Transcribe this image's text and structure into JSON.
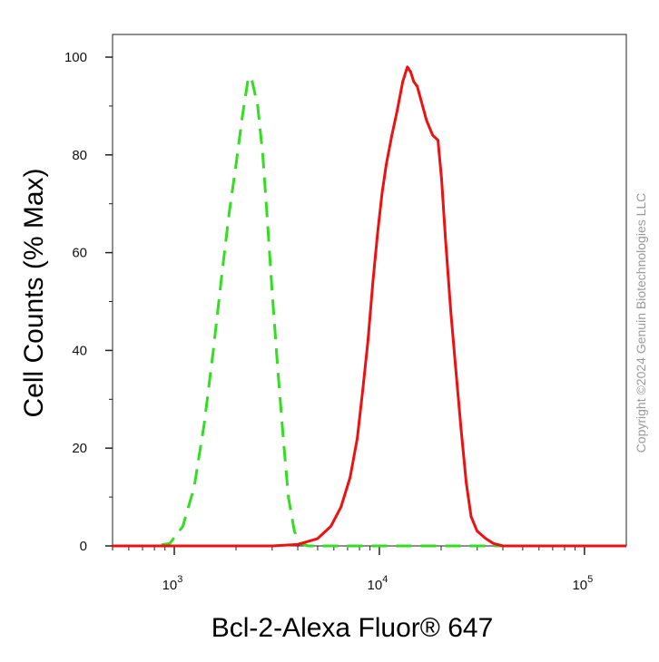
{
  "chart_data": {
    "type": "line",
    "title": "",
    "xlabel": "Bcl-2-Alexa Fluor® 647",
    "ylabel": "Cell Counts (% Max)",
    "x_scale": "log",
    "xlim": [
      500,
      160000
    ],
    "ylim": [
      0,
      105
    ],
    "grid": false,
    "x_ticks": [
      {
        "value": 1000,
        "base": "10",
        "exp": "3"
      },
      {
        "value": 10000,
        "base": "10",
        "exp": "4"
      },
      {
        "value": 100000,
        "base": "10",
        "exp": "5"
      }
    ],
    "y_ticks": [
      0,
      20,
      40,
      60,
      80,
      100
    ],
    "series": [
      {
        "color": "#33dd22",
        "style": "dashed",
        "x": [
          500,
          800,
          950,
          1100,
          1250,
          1400,
          1550,
          1700,
          1850,
          2000,
          2150,
          2300,
          2400,
          2550,
          2700,
          2850,
          3000,
          3200,
          3400,
          3600,
          3850,
          4100,
          4500,
          5000,
          6000,
          10000,
          30000,
          160000
        ],
        "y": [
          0,
          0,
          0.5,
          4,
          12,
          25,
          40,
          55,
          68,
          78,
          88,
          96,
          95,
          90,
          80,
          66,
          52,
          36,
          22,
          10,
          3,
          0.5,
          0,
          0,
          0,
          0,
          0,
          0
        ]
      },
      {
        "color": "#ee1111",
        "style": "solid",
        "x": [
          500,
          2000,
          3000,
          4000,
          5000,
          5800,
          6500,
          7200,
          7800,
          8300,
          8800,
          9300,
          9800,
          10300,
          10800,
          11500,
          12200,
          13000,
          13700,
          14200,
          14700,
          15300,
          16000,
          17000,
          18200,
          19300,
          20100,
          21000,
          22300,
          23600,
          25000,
          26500,
          28000,
          30000,
          33000,
          36000,
          40000,
          50000,
          160000
        ],
        "y": [
          0,
          0,
          0,
          0.3,
          1.5,
          4,
          8,
          14,
          22,
          32,
          42,
          54,
          64,
          72,
          78,
          84,
          89,
          95,
          98,
          97,
          95,
          94,
          91,
          87,
          84,
          83,
          75,
          63,
          48,
          36,
          24,
          13,
          6,
          3,
          1.5,
          0.5,
          0,
          0,
          0
        ]
      }
    ]
  },
  "copyright": "Copyright ©2024 Genuin Biotechnologies LLC"
}
